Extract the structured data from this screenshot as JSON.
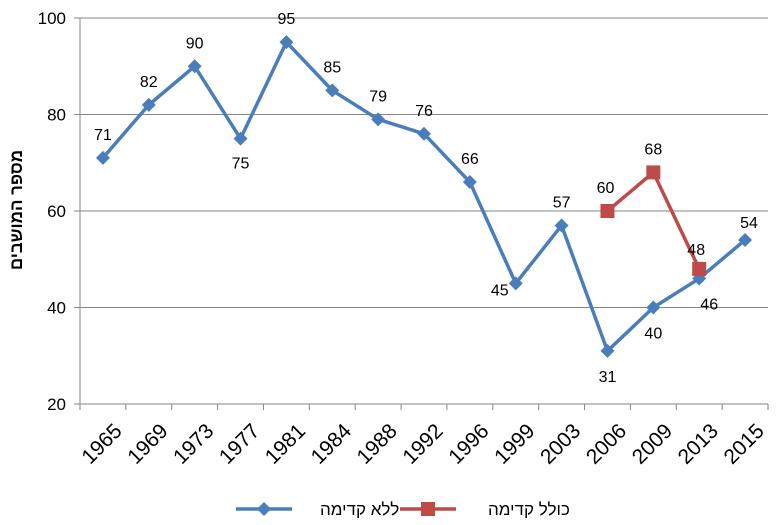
{
  "chart_data": {
    "type": "line",
    "title": "",
    "ylabel": "מספר המושבים",
    "xlabel": "",
    "ylim": [
      20,
      100
    ],
    "yticks": [
      20,
      40,
      60,
      80,
      100
    ],
    "categories": [
      "1965",
      "1969",
      "1973",
      "1977",
      "1981",
      "1984",
      "1988",
      "1992",
      "1996",
      "1999",
      "2003",
      "2006",
      "2009",
      "2013",
      "2015"
    ],
    "grid": "horizontal",
    "legend_position": "bottom",
    "series": [
      {
        "name": "ללא קדימה",
        "color": "#4a7ebb",
        "marker": "diamond",
        "values": [
          71,
          82,
          90,
          75,
          95,
          85,
          79,
          76,
          66,
          45,
          57,
          31,
          40,
          46,
          54
        ],
        "labels": [
          "71",
          "82",
          "90",
          "75",
          "95",
          "85",
          "79",
          "76",
          "66",
          "45",
          "57",
          "31",
          "40",
          "46",
          "54"
        ]
      },
      {
        "name": "כולל קדימה",
        "color": "#be4b48",
        "marker": "square",
        "values": [
          null,
          null,
          null,
          null,
          null,
          null,
          null,
          null,
          null,
          null,
          null,
          60,
          68,
          48,
          null
        ],
        "labels": [
          "",
          "",
          "",
          "",
          "",
          "",
          "",
          "",
          "",
          "",
          "",
          "60",
          "68",
          "48",
          ""
        ]
      }
    ]
  }
}
